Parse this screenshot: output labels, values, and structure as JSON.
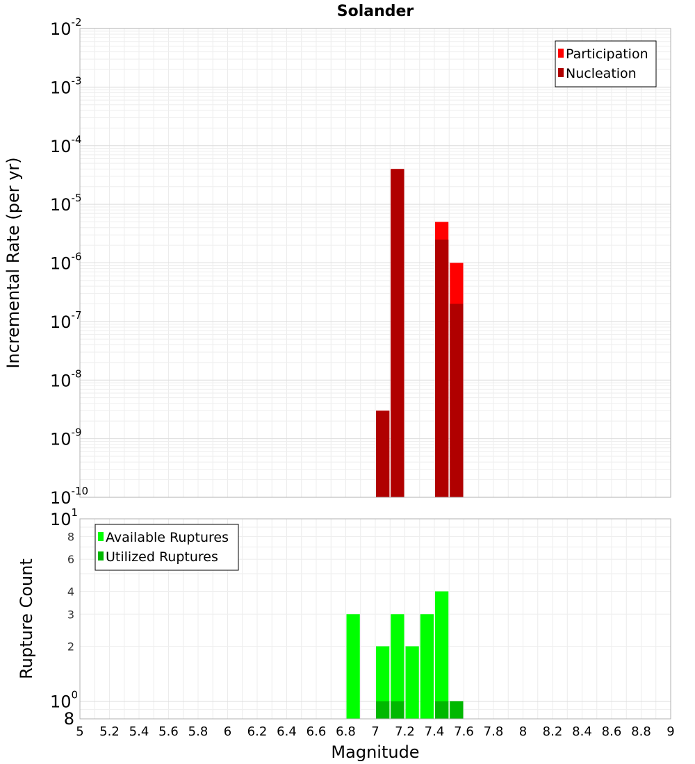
{
  "chart_data": [
    {
      "panel": "top",
      "type": "bar",
      "title": "Solander",
      "ylabel": "Incremental Rate (per yr)",
      "xlim": [
        5,
        9
      ],
      "ylim": [
        1e-10,
        0.01
      ],
      "yscale": "log",
      "grid": true,
      "legend_position": "top-right",
      "bin_width": 0.1,
      "yticks": [
        {
          "base": "10",
          "exp": "-2"
        },
        {
          "base": "10",
          "exp": "-3"
        },
        {
          "base": "10",
          "exp": "-4"
        },
        {
          "base": "10",
          "exp": "-5"
        },
        {
          "base": "10",
          "exp": "-6"
        },
        {
          "base": "10",
          "exp": "-7"
        },
        {
          "base": "10",
          "exp": "-8"
        },
        {
          "base": "10",
          "exp": "-9"
        },
        {
          "base": "10",
          "exp": "-10"
        }
      ],
      "series": [
        {
          "name": "Participation",
          "color": "#ff0000",
          "x": [
            7.05,
            7.15,
            7.45,
            7.55
          ],
          "values": [
            3e-09,
            4e-05,
            5e-06,
            1e-06
          ]
        },
        {
          "name": "Nucleation",
          "color": "#b00000",
          "x": [
            7.05,
            7.15,
            7.45,
            7.55
          ],
          "values": [
            3e-09,
            4e-05,
            2.5e-06,
            2e-07
          ]
        }
      ]
    },
    {
      "panel": "bottom",
      "type": "bar",
      "xlabel": "Magnitude",
      "ylabel": "Rupture Count",
      "xlim": [
        5,
        9
      ],
      "ylim": [
        0.8,
        10
      ],
      "yscale": "log",
      "grid": true,
      "legend_position": "top-left",
      "bin_width": 0.1,
      "major_yticks": [
        {
          "value": 10,
          "base": "10",
          "exp": "1"
        },
        {
          "value": 1,
          "base": "10",
          "exp": "0"
        }
      ],
      "minor_yticks": [
        {
          "value": 8,
          "label": "8"
        },
        {
          "value": 6,
          "label": "6"
        },
        {
          "value": 4,
          "label": "4"
        },
        {
          "value": 3,
          "label": "3"
        },
        {
          "value": 2,
          "label": "2"
        },
        {
          "value": 0.8,
          "label": "8"
        }
      ],
      "xticks": [
        "5",
        "5.2",
        "5.4",
        "5.6",
        "5.8",
        "6",
        "6.2",
        "6.4",
        "6.6",
        "6.8",
        "7",
        "7.2",
        "7.4",
        "7.6",
        "7.8",
        "8",
        "8.2",
        "8.4",
        "8.6",
        "8.8",
        "9"
      ],
      "series": [
        {
          "name": "Available Ruptures",
          "color": "#00ff00",
          "x": [
            6.85,
            7.05,
            7.15,
            7.25,
            7.35,
            7.45,
            7.55
          ],
          "values": [
            3,
            2,
            3,
            2,
            3,
            4,
            1
          ]
        },
        {
          "name": "Utilized Ruptures",
          "color": "#00b800",
          "x": [
            7.05,
            7.15,
            7.45,
            7.55
          ],
          "values": [
            1,
            1,
            1,
            1
          ]
        }
      ]
    }
  ]
}
